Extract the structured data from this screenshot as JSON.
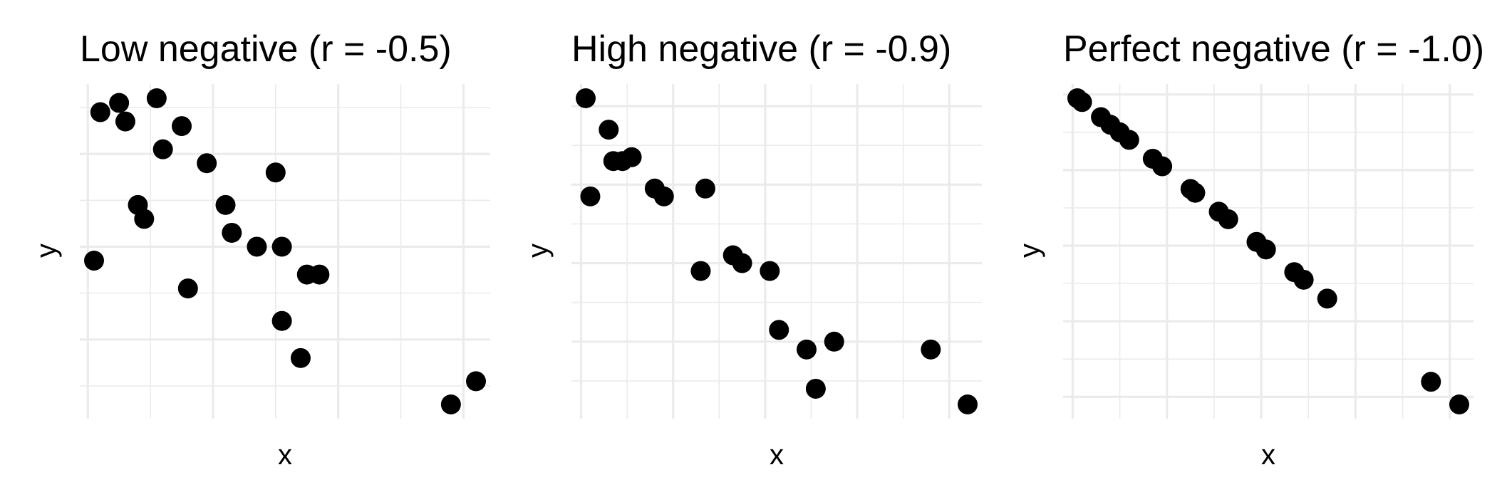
{
  "chart_data": [
    {
      "type": "scatter",
      "title": "Low negative (r = -0.5)",
      "xlabel": "x",
      "ylabel": "y",
      "grid": true,
      "x": [
        -1.9,
        -1.8,
        -1.5,
        -1.4,
        -1.2,
        -1.1,
        -0.9,
        -0.8,
        -0.5,
        -0.4,
        -0.1,
        0.2,
        0.3,
        0.7,
        1.0,
        1.1,
        1.1,
        1.4,
        1.5,
        1.7,
        3.8,
        4.2
      ],
      "y": [
        -0.15,
        1.45,
        1.55,
        1.35,
        0.45,
        0.3,
        1.6,
        1.05,
        1.3,
        -0.45,
        0.9,
        0.45,
        0.15,
        0.0,
        0.8,
        -0.8,
        0.0,
        -1.2,
        -0.3,
        -0.3,
        -1.7,
        -1.45
      ]
    },
    {
      "type": "scatter",
      "title": "High negative (r = -0.9)",
      "xlabel": "x",
      "ylabel": "y",
      "grid": true,
      "x": [
        -1.95,
        -1.9,
        -1.7,
        -1.65,
        -1.55,
        -1.45,
        -1.2,
        -1.1,
        -0.7,
        -0.65,
        -0.35,
        -0.25,
        0.05,
        0.15,
        0.45,
        0.55,
        0.75,
        1.8,
        2.2
      ],
      "y": [
        2.1,
        0.85,
        1.7,
        1.3,
        1.3,
        1.35,
        0.95,
        0.85,
        -0.1,
        0.95,
        0.1,
        0.0,
        -0.1,
        -0.85,
        -1.1,
        -1.6,
        -1.0,
        -1.1,
        -1.8
      ]
    },
    {
      "type": "scatter",
      "title": "Perfect negative (r = -1.0)",
      "xlabel": "x",
      "ylabel": "y",
      "grid": true,
      "x": [
        -1.95,
        -1.9,
        -1.7,
        -1.6,
        -1.5,
        -1.4,
        -1.15,
        -1.05,
        -0.75,
        -0.7,
        -0.45,
        -0.35,
        -0.05,
        0.05,
        0.35,
        0.45,
        0.7,
        1.8,
        2.1
      ],
      "y": [
        1.95,
        1.9,
        1.7,
        1.6,
        1.5,
        1.4,
        1.15,
        1.05,
        0.75,
        0.7,
        0.45,
        0.35,
        0.05,
        -0.05,
        -0.35,
        -0.45,
        -0.7,
        -1.8,
        -2.1
      ]
    }
  ]
}
